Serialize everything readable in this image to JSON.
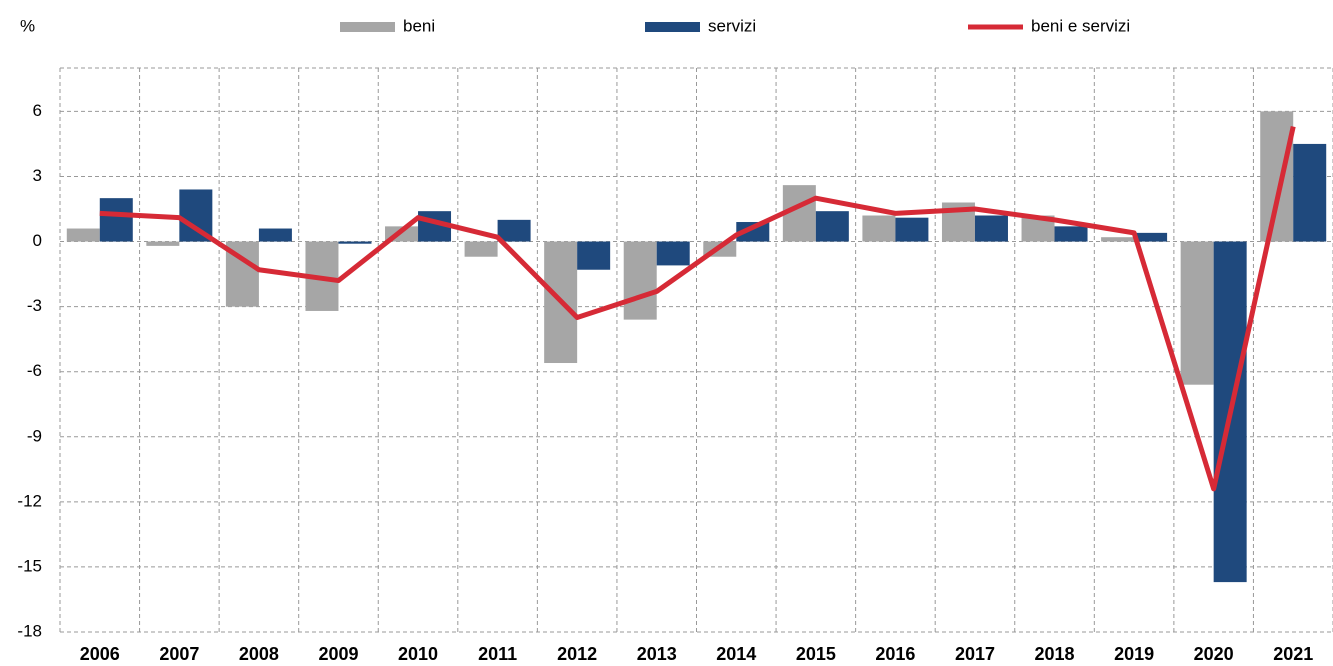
{
  "chart_data": {
    "type": "bar",
    "ylabel": "%",
    "categories": [
      "2006",
      "2007",
      "2008",
      "2009",
      "2010",
      "2011",
      "2012",
      "2013",
      "2014",
      "2015",
      "2016",
      "2017",
      "2018",
      "2019",
      "2020",
      "2021"
    ],
    "series": [
      {
        "name": "beni",
        "type": "bar",
        "color": "#a6a6a6",
        "values": [
          0.6,
          -0.2,
          -3.0,
          -3.2,
          0.7,
          -0.7,
          -5.6,
          -3.6,
          -0.7,
          2.6,
          1.2,
          1.8,
          1.2,
          0.2,
          -6.6,
          6.0
        ]
      },
      {
        "name": "servizi",
        "type": "bar",
        "color": "#1f497d",
        "values": [
          2.0,
          2.4,
          0.6,
          -0.1,
          1.4,
          1.0,
          -1.3,
          -1.1,
          0.9,
          1.4,
          1.1,
          1.2,
          0.7,
          0.4,
          -15.7,
          4.5
        ]
      },
      {
        "name": "beni e servizi",
        "type": "line",
        "color": "#d62a36",
        "values": [
          1.3,
          1.1,
          -1.3,
          -1.8,
          1.1,
          0.2,
          -3.5,
          -2.3,
          0.3,
          2.0,
          1.3,
          1.5,
          1.0,
          0.4,
          -11.4,
          5.3
        ]
      }
    ],
    "ylim": [
      -18,
      8
    ],
    "yticks": [
      -18,
      -15,
      -12,
      -9,
      -6,
      -3,
      0,
      3,
      6
    ],
    "grid": true
  }
}
